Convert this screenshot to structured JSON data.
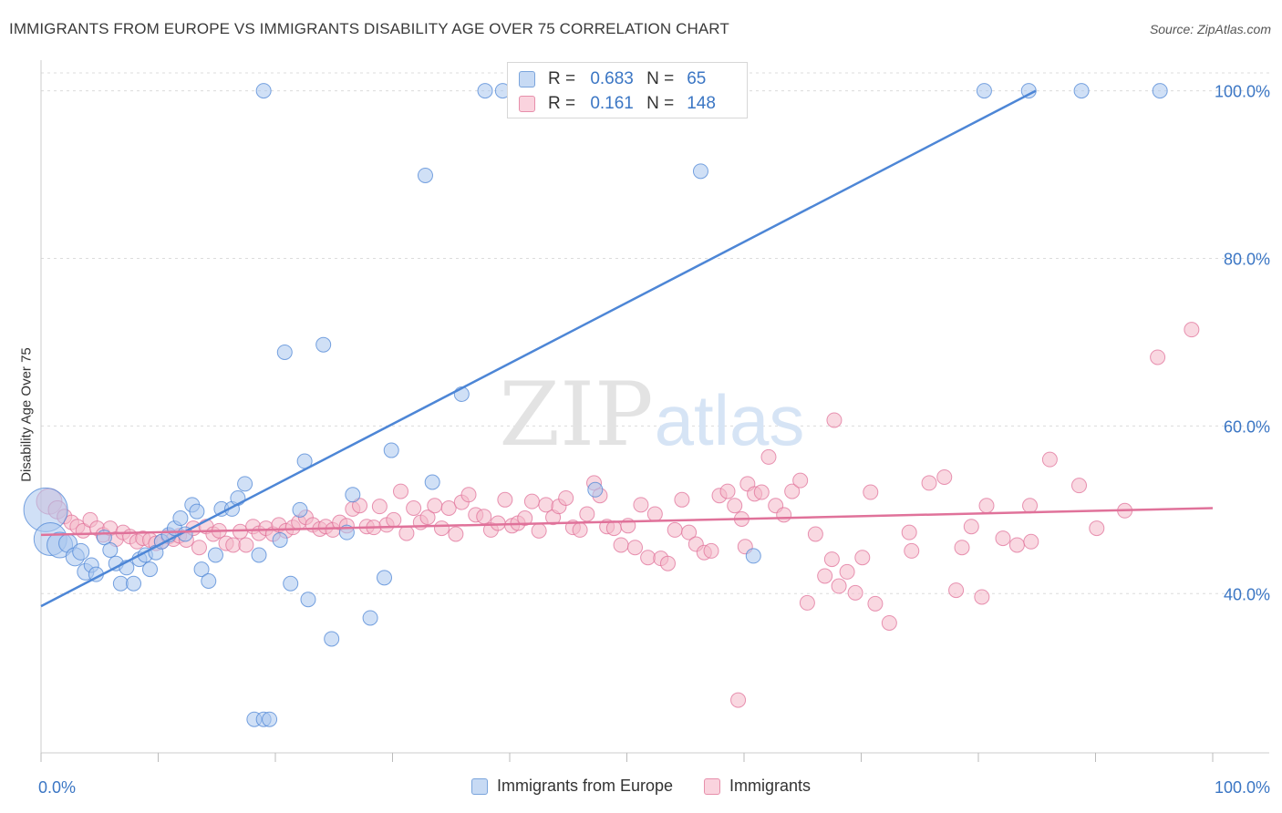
{
  "header": {
    "title": "IMMIGRANTS FROM EUROPE VS IMMIGRANTS DISABILITY AGE OVER 75 CORRELATION CHART",
    "source": "Source: ZipAtlas.com"
  },
  "watermark": {
    "zip": "ZIP",
    "atlas": "atlas"
  },
  "stats": [
    {
      "r_label": "R =",
      "r": "0.683",
      "n_label": "N =",
      "n": "65",
      "color": "#a9c6ee"
    },
    {
      "r_label": "R =",
      "r": "0.161",
      "n_label": "N =",
      "n": "148",
      "color": "#f4b8c9"
    }
  ],
  "legend": [
    {
      "label": "Immigrants from Europe",
      "color": "#a9c6ee",
      "border": "#7aa4dc"
    },
    {
      "label": "Immigrants",
      "color": "#f4b8c9",
      "border": "#e78fab"
    }
  ],
  "chart_data": {
    "type": "scatter",
    "ylabel": "Disability Age Over 75",
    "xlim": [
      0,
      100
    ],
    "ylim": [
      21,
      103
    ],
    "x_tick_labels": [
      "0.0%",
      "100.0%"
    ],
    "y_ticks": [
      40,
      60,
      80,
      100
    ],
    "y_tick_labels": [
      "40.0%",
      "60.0%",
      "80.0%",
      "100.0%"
    ],
    "grid": true,
    "series": [
      {
        "name": "Immigrants from Europe",
        "color": "#4d86d6",
        "fill": "#a9c6ee",
        "trend": {
          "x": [
            0,
            84.9
          ],
          "y": [
            38.5,
            100
          ]
        },
        "points": [
          [
            0.4,
            50,
            24
          ],
          [
            0.8,
            46.5,
            18
          ],
          [
            1.6,
            45.8,
            14
          ],
          [
            2.3,
            46,
            10
          ],
          [
            2.9,
            44.4,
            10
          ],
          [
            3.4,
            45,
            9
          ],
          [
            3.8,
            42.6,
            9
          ],
          [
            4.3,
            43.4,
            8
          ],
          [
            4.7,
            42.3,
            8
          ],
          [
            5.4,
            46.7,
            8
          ],
          [
            5.9,
            45.2,
            8
          ],
          [
            6.4,
            43.6,
            8
          ],
          [
            6.8,
            41.2,
            8
          ],
          [
            7.3,
            43.1,
            8
          ],
          [
            7.9,
            41.2,
            8
          ],
          [
            8.4,
            44.1,
            8
          ],
          [
            8.9,
            44.6,
            8
          ],
          [
            9.3,
            42.9,
            8
          ],
          [
            9.8,
            44.9,
            8
          ],
          [
            10.3,
            46.2,
            8
          ],
          [
            10.9,
            47,
            8
          ],
          [
            11.4,
            47.8,
            8
          ],
          [
            11.9,
            49,
            8
          ],
          [
            12.3,
            47.1,
            8
          ],
          [
            12.9,
            50.6,
            8
          ],
          [
            13.3,
            49.8,
            8
          ],
          [
            13.7,
            42.9,
            8
          ],
          [
            14.3,
            41.5,
            8
          ],
          [
            14.9,
            44.6,
            8
          ],
          [
            15.4,
            50.1,
            8
          ],
          [
            16.3,
            50.1,
            8
          ],
          [
            16.8,
            51.4,
            8
          ],
          [
            17.4,
            53.1,
            8
          ],
          [
            18.6,
            44.6,
            8
          ],
          [
            20.4,
            46.4,
            8
          ],
          [
            21.3,
            41.2,
            8
          ],
          [
            22.1,
            50,
            8
          ],
          [
            22.8,
            39.3,
            8
          ],
          [
            26.1,
            47.3,
            8
          ],
          [
            26.6,
            51.8,
            8
          ],
          [
            28.1,
            37.1,
            8
          ],
          [
            29.3,
            41.9,
            8
          ],
          [
            29.9,
            57.1,
            8
          ],
          [
            33.4,
            53.3,
            8
          ],
          [
            35.9,
            63.8,
            8
          ],
          [
            37.9,
            100,
            8
          ],
          [
            39.4,
            100,
            8
          ],
          [
            47.1,
            100,
            8
          ],
          [
            47.3,
            52.4,
            8
          ],
          [
            57.1,
            100,
            8
          ],
          [
            60.8,
            44.5,
            8
          ],
          [
            88.8,
            100,
            8
          ],
          [
            95.5,
            100,
            8
          ],
          [
            19,
            100,
            8
          ],
          [
            20.8,
            68.8,
            8
          ],
          [
            24.1,
            69.7,
            8
          ],
          [
            32.8,
            89.9,
            8
          ],
          [
            56.3,
            90.4,
            8
          ],
          [
            18.2,
            25,
            8
          ],
          [
            19,
            25,
            8
          ],
          [
            19.5,
            25,
            8
          ],
          [
            24.8,
            34.6,
            8
          ],
          [
            22.5,
            55.8,
            8
          ],
          [
            80.5,
            100,
            8
          ],
          [
            84.3,
            100,
            8
          ]
        ]
      },
      {
        "name": "Immigrants",
        "color": "#e0729a",
        "fill": "#f4b8c9",
        "trend": {
          "x": [
            0,
            100
          ],
          "y": [
            47,
            50.2
          ]
        },
        "points": [
          [
            0.7,
            51,
            14
          ],
          [
            1.4,
            50,
            10
          ],
          [
            2,
            49.2,
            8
          ],
          [
            2.6,
            48.5,
            8
          ],
          [
            3.1,
            48,
            8
          ],
          [
            3.6,
            47.5,
            8
          ],
          [
            4.2,
            48.8,
            8
          ],
          [
            4.8,
            47.8,
            8
          ],
          [
            5.3,
            47,
            8
          ],
          [
            5.9,
            47.8,
            8
          ],
          [
            6.4,
            46.5,
            8
          ],
          [
            7,
            47.3,
            8
          ],
          [
            7.6,
            46.8,
            8
          ],
          [
            8.2,
            46.2,
            8
          ],
          [
            8.7,
            46.6,
            8
          ],
          [
            9.3,
            46.4,
            8
          ],
          [
            9.8,
            46,
            8
          ],
          [
            10.3,
            46.2,
            8
          ],
          [
            10.9,
            46.8,
            8
          ],
          [
            11.3,
            46.5,
            8
          ],
          [
            11.8,
            46.9,
            8
          ],
          [
            12.4,
            46.4,
            8
          ],
          [
            13,
            47.8,
            8
          ],
          [
            13.5,
            45.5,
            8
          ],
          [
            14.1,
            48,
            8
          ],
          [
            14.7,
            47.1,
            8
          ],
          [
            15.2,
            47.5,
            8
          ],
          [
            15.8,
            46,
            8
          ],
          [
            16.4,
            45.8,
            8
          ],
          [
            17,
            47.4,
            8
          ],
          [
            17.5,
            45.8,
            8
          ],
          [
            18.1,
            48,
            8
          ],
          [
            18.6,
            47.2,
            8
          ],
          [
            19.2,
            47.8,
            8
          ],
          [
            19.8,
            47.1,
            8
          ],
          [
            20.3,
            48.2,
            8
          ],
          [
            20.9,
            47.5,
            8
          ],
          [
            21.5,
            47.9,
            8
          ],
          [
            22,
            48.5,
            8
          ],
          [
            22.6,
            49.1,
            8
          ],
          [
            23.2,
            48.2,
            8
          ],
          [
            23.8,
            47.7,
            8
          ],
          [
            24.3,
            48,
            8
          ],
          [
            24.9,
            47.6,
            8
          ],
          [
            25.5,
            48.5,
            8
          ],
          [
            26.1,
            48.1,
            8
          ],
          [
            26.6,
            50.1,
            8
          ],
          [
            27.2,
            50.5,
            8
          ],
          [
            27.8,
            48,
            8
          ],
          [
            28.4,
            47.9,
            8
          ],
          [
            28.9,
            50.4,
            8
          ],
          [
            29.5,
            48.2,
            8
          ],
          [
            30.1,
            48.8,
            8
          ],
          [
            30.7,
            52.2,
            8
          ],
          [
            31.2,
            47.2,
            8
          ],
          [
            31.8,
            50.2,
            8
          ],
          [
            32.4,
            48.5,
            8
          ],
          [
            33,
            49.1,
            8
          ],
          [
            33.6,
            50.5,
            8
          ],
          [
            34.2,
            47.8,
            8
          ],
          [
            34.8,
            50.2,
            8
          ],
          [
            35.4,
            47.1,
            8
          ],
          [
            35.9,
            50.9,
            8
          ],
          [
            36.5,
            51.8,
            8
          ],
          [
            37.1,
            49.4,
            8
          ],
          [
            37.8,
            49.2,
            8
          ],
          [
            38.4,
            47.6,
            8
          ],
          [
            39,
            48.4,
            8
          ],
          [
            39.6,
            51.2,
            8
          ],
          [
            40.2,
            48.1,
            8
          ],
          [
            40.7,
            48.4,
            8
          ],
          [
            41.3,
            49,
            8
          ],
          [
            41.9,
            51,
            8
          ],
          [
            42.5,
            47.5,
            8
          ],
          [
            43.1,
            50.6,
            8
          ],
          [
            43.7,
            49.1,
            8
          ],
          [
            44.2,
            50.4,
            8
          ],
          [
            44.8,
            51.4,
            8
          ],
          [
            45.4,
            47.9,
            8
          ],
          [
            46,
            47.6,
            8
          ],
          [
            46.6,
            49.5,
            8
          ],
          [
            47.2,
            53.2,
            8
          ],
          [
            47.7,
            51.7,
            8
          ],
          [
            48.3,
            48,
            8
          ],
          [
            48.9,
            47.8,
            8
          ],
          [
            49.5,
            45.8,
            8
          ],
          [
            50.1,
            48.1,
            8
          ],
          [
            50.7,
            45.5,
            8
          ],
          [
            51.2,
            50.6,
            8
          ],
          [
            51.8,
            44.3,
            8
          ],
          [
            52.4,
            49.5,
            8
          ],
          [
            52.9,
            44.2,
            8
          ],
          [
            53.5,
            43.6,
            8
          ],
          [
            54.1,
            47.6,
            8
          ],
          [
            54.7,
            51.2,
            8
          ],
          [
            55.3,
            47.3,
            8
          ],
          [
            55.9,
            45.9,
            8
          ],
          [
            56.6,
            44.9,
            8
          ],
          [
            57.2,
            45.1,
            8
          ],
          [
            57.9,
            51.7,
            8
          ],
          [
            58.6,
            52.2,
            8
          ],
          [
            59.2,
            50.5,
            8
          ],
          [
            59.8,
            48.9,
            8
          ],
          [
            60.3,
            53.1,
            8
          ],
          [
            60.9,
            51.9,
            8
          ],
          [
            61.5,
            52.1,
            8
          ],
          [
            62.1,
            56.3,
            8
          ],
          [
            62.7,
            50.5,
            8
          ],
          [
            63.4,
            49.4,
            8
          ],
          [
            64.1,
            52.2,
            8
          ],
          [
            64.8,
            53.5,
            8
          ],
          [
            65.4,
            38.9,
            8
          ],
          [
            66.1,
            47.1,
            8
          ],
          [
            66.9,
            42.1,
            8
          ],
          [
            67.5,
            44.1,
            8
          ],
          [
            68.1,
            40.9,
            8
          ],
          [
            68.8,
            42.6,
            8
          ],
          [
            69.5,
            40.1,
            8
          ],
          [
            70.1,
            44.3,
            8
          ],
          [
            70.8,
            52.1,
            8
          ],
          [
            72.4,
            36.5,
            8
          ],
          [
            74.1,
            47.3,
            8
          ],
          [
            75.8,
            53.2,
            8
          ],
          [
            77.1,
            53.9,
            8
          ],
          [
            78.6,
            45.5,
            8
          ],
          [
            79.4,
            48,
            8
          ],
          [
            80.7,
            50.5,
            8
          ],
          [
            82.1,
            46.6,
            8
          ],
          [
            83.3,
            45.8,
            8
          ],
          [
            84.4,
            50.5,
            8
          ],
          [
            86.1,
            56,
            8
          ],
          [
            88.6,
            52.9,
            8
          ],
          [
            92.5,
            49.9,
            8
          ],
          [
            95.3,
            68.2,
            8
          ],
          [
            98.2,
            71.5,
            8
          ],
          [
            59.5,
            27.3,
            8
          ],
          [
            67.7,
            60.7,
            8
          ],
          [
            78.1,
            40.4,
            8
          ],
          [
            71.2,
            38.8,
            8
          ],
          [
            80.3,
            39.6,
            8
          ],
          [
            74.3,
            45.1,
            8
          ],
          [
            60.1,
            45.6,
            8
          ],
          [
            84.5,
            46.2,
            8
          ],
          [
            90.1,
            47.8,
            8
          ]
        ]
      }
    ]
  }
}
